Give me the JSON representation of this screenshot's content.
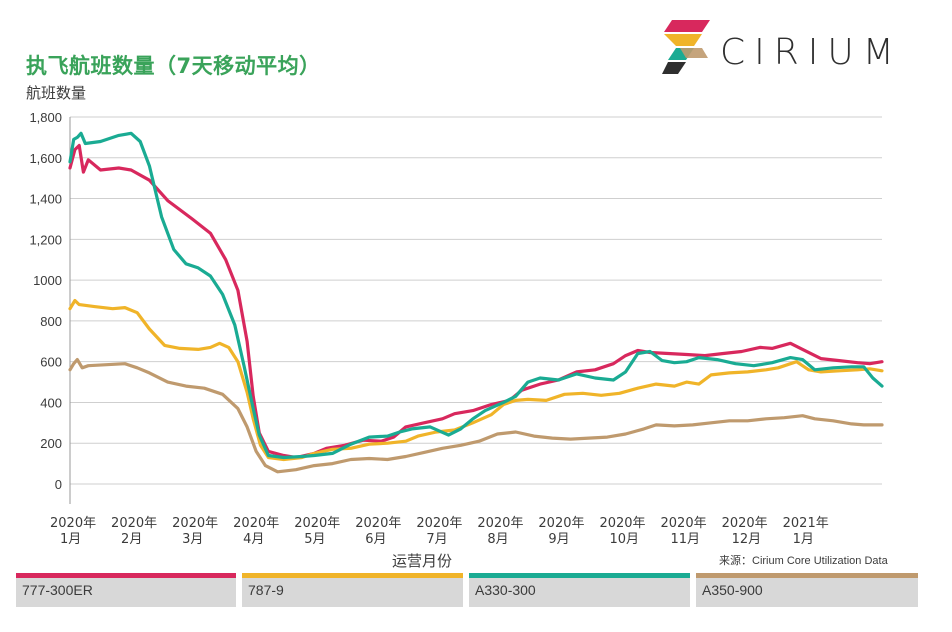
{
  "header": {
    "title": "执飞航班数量（7天移动平均）",
    "y_axis_label": "航班数量",
    "x_axis_label": "运营月份",
    "source": "来源：Cirium Core Utilization Data",
    "brand": "CIRIUM"
  },
  "colors": {
    "777-300ER": "#d8285d",
    "787-9": "#f0b429",
    "A330-300": "#1aab93",
    "A350-900": "#bf9a6e",
    "grid": "#cfcfcf",
    "title": "#3aa35a"
  },
  "chart_data": {
    "type": "line",
    "ylabel": "航班数量",
    "xlabel": "运营月份",
    "ylim": [
      0,
      1800
    ],
    "yticks": [
      "0",
      "200",
      "400",
      "600",
      "800",
      "1000",
      "1,200",
      "1,400",
      "1,600",
      "1,800"
    ],
    "ytick_values": [
      0,
      200,
      400,
      600,
      800,
      1000,
      1200,
      1400,
      1600,
      1800
    ],
    "xlim": [
      0,
      13.3
    ],
    "xticks": [
      {
        "year": "2020年",
        "month": "1月",
        "x": 0
      },
      {
        "year": "2020年",
        "month": "2月",
        "x": 1
      },
      {
        "year": "2020年",
        "month": "3月",
        "x": 2
      },
      {
        "year": "2020年",
        "month": "4月",
        "x": 3
      },
      {
        "year": "2020年",
        "month": "5月",
        "x": 4
      },
      {
        "year": "2020年",
        "month": "6月",
        "x": 5
      },
      {
        "year": "2020年",
        "month": "7月",
        "x": 6
      },
      {
        "year": "2020年",
        "month": "8月",
        "x": 7
      },
      {
        "year": "2020年",
        "month": "9月",
        "x": 8
      },
      {
        "year": "2020年",
        "month": "10月",
        "x": 9
      },
      {
        "year": "2020年",
        "month": "11月",
        "x": 10
      },
      {
        "year": "2020年",
        "month": "12月",
        "x": 11
      },
      {
        "year": "2021年",
        "month": "1月",
        "x": 12
      }
    ],
    "grid": true,
    "series": [
      {
        "name": "777-300ER",
        "points": [
          [
            0,
            1550
          ],
          [
            0.08,
            1640
          ],
          [
            0.15,
            1660
          ],
          [
            0.22,
            1530
          ],
          [
            0.3,
            1590
          ],
          [
            0.5,
            1540
          ],
          [
            0.8,
            1550
          ],
          [
            1,
            1540
          ],
          [
            1.3,
            1490
          ],
          [
            1.6,
            1390
          ],
          [
            2,
            1300
          ],
          [
            2.3,
            1230
          ],
          [
            2.55,
            1100
          ],
          [
            2.75,
            950
          ],
          [
            2.9,
            700
          ],
          [
            3,
            430
          ],
          [
            3.1,
            250
          ],
          [
            3.25,
            160
          ],
          [
            3.5,
            140
          ],
          [
            3.7,
            130
          ],
          [
            4,
            150
          ],
          [
            4.2,
            175
          ],
          [
            4.5,
            190
          ],
          [
            4.8,
            215
          ],
          [
            5.1,
            210
          ],
          [
            5.3,
            230
          ],
          [
            5.5,
            280
          ],
          [
            5.8,
            300
          ],
          [
            6.1,
            320
          ],
          [
            6.3,
            345
          ],
          [
            6.6,
            360
          ],
          [
            6.9,
            390
          ],
          [
            7.2,
            410
          ],
          [
            7.4,
            460
          ],
          [
            7.7,
            490
          ],
          [
            8,
            510
          ],
          [
            8.3,
            550
          ],
          [
            8.6,
            560
          ],
          [
            8.9,
            590
          ],
          [
            9.1,
            630
          ],
          [
            9.3,
            655
          ],
          [
            9.5,
            645
          ],
          [
            9.8,
            640
          ],
          [
            10.1,
            635
          ],
          [
            10.4,
            630
          ],
          [
            10.7,
            640
          ],
          [
            11,
            650
          ],
          [
            11.3,
            670
          ],
          [
            11.5,
            665
          ],
          [
            11.8,
            690
          ],
          [
            12,
            660
          ],
          [
            12.3,
            615
          ],
          [
            12.6,
            605
          ],
          [
            12.9,
            595
          ],
          [
            13.1,
            590
          ],
          [
            13.3,
            600
          ]
        ]
      },
      {
        "name": "787-9",
        "points": [
          [
            0,
            860
          ],
          [
            0.08,
            900
          ],
          [
            0.15,
            880
          ],
          [
            0.4,
            870
          ],
          [
            0.7,
            860
          ],
          [
            0.9,
            865
          ],
          [
            1.1,
            840
          ],
          [
            1.3,
            760
          ],
          [
            1.55,
            680
          ],
          [
            1.8,
            665
          ],
          [
            2.1,
            660
          ],
          [
            2.3,
            670
          ],
          [
            2.45,
            690
          ],
          [
            2.6,
            670
          ],
          [
            2.75,
            600
          ],
          [
            2.9,
            450
          ],
          [
            3,
            320
          ],
          [
            3.12,
            190
          ],
          [
            3.25,
            130
          ],
          [
            3.5,
            120
          ],
          [
            3.8,
            130
          ],
          [
            4,
            150
          ],
          [
            4.3,
            170
          ],
          [
            4.6,
            175
          ],
          [
            4.9,
            195
          ],
          [
            5.2,
            200
          ],
          [
            5.5,
            210
          ],
          [
            5.7,
            235
          ],
          [
            6,
            255
          ],
          [
            6.3,
            265
          ],
          [
            6.6,
            300
          ],
          [
            6.9,
            340
          ],
          [
            7.1,
            390
          ],
          [
            7.3,
            410
          ],
          [
            7.5,
            415
          ],
          [
            7.8,
            410
          ],
          [
            8.1,
            440
          ],
          [
            8.4,
            445
          ],
          [
            8.7,
            435
          ],
          [
            9,
            445
          ],
          [
            9.3,
            470
          ],
          [
            9.6,
            490
          ],
          [
            9.9,
            480
          ],
          [
            10.1,
            500
          ],
          [
            10.3,
            490
          ],
          [
            10.5,
            535
          ],
          [
            10.8,
            545
          ],
          [
            11.1,
            550
          ],
          [
            11.4,
            560
          ],
          [
            11.6,
            570
          ],
          [
            11.9,
            600
          ],
          [
            12.1,
            560
          ],
          [
            12.3,
            550
          ],
          [
            12.6,
            555
          ],
          [
            12.9,
            560
          ],
          [
            13.1,
            565
          ],
          [
            13.3,
            555
          ]
        ]
      },
      {
        "name": "A330-300",
        "points": [
          [
            0,
            1580
          ],
          [
            0.06,
            1690
          ],
          [
            0.12,
            1700
          ],
          [
            0.18,
            1720
          ],
          [
            0.25,
            1670
          ],
          [
            0.5,
            1680
          ],
          [
            0.8,
            1710
          ],
          [
            1,
            1720
          ],
          [
            1.15,
            1680
          ],
          [
            1.3,
            1560
          ],
          [
            1.5,
            1310
          ],
          [
            1.7,
            1150
          ],
          [
            1.9,
            1080
          ],
          [
            2.1,
            1060
          ],
          [
            2.3,
            1020
          ],
          [
            2.5,
            930
          ],
          [
            2.7,
            780
          ],
          [
            2.85,
            580
          ],
          [
            3,
            370
          ],
          [
            3.1,
            240
          ],
          [
            3.25,
            140
          ],
          [
            3.5,
            130
          ],
          [
            3.8,
            135
          ],
          [
            4,
            140
          ],
          [
            4.3,
            150
          ],
          [
            4.6,
            195
          ],
          [
            4.9,
            230
          ],
          [
            5.2,
            235
          ],
          [
            5.4,
            255
          ],
          [
            5.6,
            270
          ],
          [
            5.9,
            280
          ],
          [
            6.2,
            240
          ],
          [
            6.4,
            270
          ],
          [
            6.6,
            320
          ],
          [
            6.8,
            360
          ],
          [
            7.1,
            400
          ],
          [
            7.3,
            430
          ],
          [
            7.5,
            500
          ],
          [
            7.7,
            520
          ],
          [
            8,
            510
          ],
          [
            8.3,
            540
          ],
          [
            8.6,
            520
          ],
          [
            8.9,
            510
          ],
          [
            9.1,
            550
          ],
          [
            9.3,
            640
          ],
          [
            9.5,
            650
          ],
          [
            9.7,
            605
          ],
          [
            9.9,
            595
          ],
          [
            10.1,
            600
          ],
          [
            10.3,
            620
          ],
          [
            10.6,
            610
          ],
          [
            10.9,
            590
          ],
          [
            11.2,
            580
          ],
          [
            11.5,
            595
          ],
          [
            11.8,
            620
          ],
          [
            12,
            610
          ],
          [
            12.2,
            560
          ],
          [
            12.5,
            570
          ],
          [
            12.8,
            575
          ],
          [
            13,
            575
          ],
          [
            13.15,
            520
          ],
          [
            13.3,
            480
          ]
        ]
      },
      {
        "name": "A350-900",
        "points": [
          [
            0,
            560
          ],
          [
            0.06,
            590
          ],
          [
            0.12,
            610
          ],
          [
            0.2,
            570
          ],
          [
            0.3,
            580
          ],
          [
            0.6,
            585
          ],
          [
            0.9,
            590
          ],
          [
            1.1,
            570
          ],
          [
            1.3,
            545
          ],
          [
            1.6,
            500
          ],
          [
            1.9,
            480
          ],
          [
            2.2,
            470
          ],
          [
            2.5,
            440
          ],
          [
            2.75,
            370
          ],
          [
            2.9,
            280
          ],
          [
            3.05,
            160
          ],
          [
            3.2,
            90
          ],
          [
            3.4,
            60
          ],
          [
            3.7,
            70
          ],
          [
            4,
            90
          ],
          [
            4.3,
            100
          ],
          [
            4.6,
            120
          ],
          [
            4.9,
            125
          ],
          [
            5.2,
            120
          ],
          [
            5.5,
            135
          ],
          [
            5.8,
            155
          ],
          [
            6.1,
            175
          ],
          [
            6.4,
            190
          ],
          [
            6.7,
            210
          ],
          [
            7,
            245
          ],
          [
            7.3,
            255
          ],
          [
            7.6,
            235
          ],
          [
            7.9,
            225
          ],
          [
            8.2,
            220
          ],
          [
            8.5,
            225
          ],
          [
            8.8,
            230
          ],
          [
            9.1,
            245
          ],
          [
            9.4,
            270
          ],
          [
            9.6,
            290
          ],
          [
            9.9,
            285
          ],
          [
            10.2,
            290
          ],
          [
            10.5,
            300
          ],
          [
            10.8,
            310
          ],
          [
            11.1,
            310
          ],
          [
            11.4,
            320
          ],
          [
            11.7,
            325
          ],
          [
            12,
            335
          ],
          [
            12.2,
            320
          ],
          [
            12.5,
            310
          ],
          [
            12.8,
            295
          ],
          [
            13,
            290
          ],
          [
            13.3,
            290
          ]
        ]
      }
    ]
  },
  "legend": [
    {
      "label": "777-300ER",
      "color": "#d8285d"
    },
    {
      "label": "787-9",
      "color": "#f0b429"
    },
    {
      "label": "A330-300",
      "color": "#1aab93"
    },
    {
      "label": "A350-900",
      "color": "#bf9a6e"
    }
  ]
}
